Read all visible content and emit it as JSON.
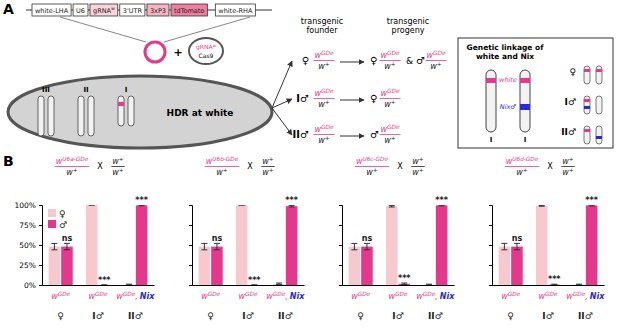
{
  "panel_labels": [
    "A",
    "B"
  ],
  "diagram": {
    "construct": [
      {
        "text": "white-LHA"
      },
      {
        "text": "U6"
      },
      {
        "text": "gRNA",
        "sup": "w"
      },
      {
        "text": "3'UTR"
      },
      {
        "text": "3xP3"
      },
      {
        "text": "tdTomato"
      },
      {
        "text": "white-RHA"
      }
    ],
    "plasmid": {
      "text": "gRNA",
      "sup": "w",
      "protein": "Cas9"
    },
    "plus": "+",
    "chromosomes": [
      "III",
      "II",
      "I"
    ],
    "event": "HDR at white",
    "headers": [
      [
        "transgenic",
        "founder"
      ],
      [
        "transgenic",
        "progeny"
      ]
    ],
    "rows": [
      {
        "founder": "♀",
        "progeny": [
          "♀",
          "♂"
        ]
      },
      {
        "founder": "I♂",
        "progeny": [
          "♀"
        ]
      },
      {
        "founder": "II♂",
        "progeny": [
          "♂"
        ]
      }
    ],
    "genotype": {
      "numerator": {
        "text": "w",
        "sup": "GDe"
      },
      "denominator": {
        "text": "w",
        "sup": "+"
      }
    },
    "conjunction": "&",
    "linkage": {
      "title": [
        "Genetic linkage of",
        "white and Nix"
      ],
      "gene": "white",
      "linked": "Nix",
      "linked_sex": "♂",
      "chromosome": "I",
      "types": [
        "♀",
        "I♂",
        "II♂"
      ]
    }
  },
  "chart_data": [
    {
      "type": "bar",
      "cross": {
        "parent1": {
          "numerator": {
            "text": "w",
            "sup": "U6a-GDe"
          },
          "denominator": {
            "text": "w",
            "sup": "+"
          }
        },
        "symbol": "X",
        "parent2": {
          "numerator": {
            "text": "w",
            "sup": "+"
          },
          "denominator": {
            "text": "w",
            "sup": "+"
          }
        }
      },
      "categories": [
        "♀",
        "I♂",
        "II♂"
      ],
      "genotypes": [
        {
          "text": "w",
          "sup": "GDe"
        },
        {
          "text": "w",
          "sup": "GDe"
        },
        {
          "text": "w",
          "sup": "GDe",
          "separator": ",",
          "linked": "Nix"
        }
      ],
      "series": [
        {
          "name": "♀",
          "color": "#f7c9cf",
          "values": [
            48,
            100,
            0.5
          ],
          "errors": [
            4,
            0,
            0.5
          ]
        },
        {
          "name": "♂",
          "color": "#e4388c",
          "values": [
            48,
            0,
            99.5
          ],
          "errors": [
            4,
            0,
            0.5
          ]
        }
      ],
      "significance": [
        "ns",
        "***",
        "***"
      ],
      "ylim": [
        0,
        100
      ],
      "yticks": [
        {
          "value": 0,
          "label": "0%"
        },
        {
          "value": 25,
          "label": "25%"
        },
        {
          "value": 50,
          "label": "50%"
        },
        {
          "value": 75,
          "label": "75%"
        },
        {
          "value": 100,
          "label": "100%"
        }
      ],
      "legend": "upper left"
    },
    {
      "type": "bar",
      "cross": {
        "parent1": {
          "numerator": {
            "text": "w",
            "sup": "U6b-GDe"
          },
          "denominator": {
            "text": "w",
            "sup": "+"
          }
        },
        "symbol": "X",
        "parent2": {
          "numerator": {
            "text": "w",
            "sup": "+"
          },
          "denominator": {
            "text": "w",
            "sup": "+"
          }
        }
      },
      "categories": [
        "♀",
        "I♂",
        "II♂"
      ],
      "genotypes": [
        {
          "text": "w",
          "sup": "GDe"
        },
        {
          "text": "w",
          "sup": "GDe"
        },
        {
          "text": "w",
          "sup": "GDe",
          "separator": ",",
          "linked": "Nix"
        }
      ],
      "series": [
        {
          "name": "♀",
          "color": "#f7c9cf",
          "values": [
            48,
            100,
            1.5
          ],
          "errors": [
            4,
            0,
            1
          ]
        },
        {
          "name": "♂",
          "color": "#e4388c",
          "values": [
            48,
            0,
            98.5
          ],
          "errors": [
            4,
            0,
            1
          ]
        }
      ],
      "significance": [
        "ns",
        "***",
        "***"
      ],
      "ylim": [
        0,
        100
      ],
      "yticks": [
        0,
        25,
        50,
        75,
        100
      ],
      "tick_labels": "x"
    },
    {
      "type": "bar",
      "cross": {
        "parent1": {
          "numerator": {
            "text": "w",
            "sup": "U6c-GDe"
          },
          "denominator": {
            "text": "w",
            "sup": "+"
          }
        },
        "symbol": "X",
        "parent2": {
          "numerator": {
            "text": "w",
            "sup": "+"
          },
          "denominator": {
            "text": "w",
            "sup": "+"
          }
        }
      },
      "categories": [
        "♀",
        "I♂",
        "II♂"
      ],
      "genotypes": [
        {
          "text": "w",
          "sup": "GDe"
        },
        {
          "text": "w",
          "sup": "GDe"
        },
        {
          "text": "w",
          "sup": "GDe",
          "separator": ",",
          "linked": "Nix"
        }
      ],
      "series": [
        {
          "name": "♀",
          "color": "#f7c9cf",
          "values": [
            48,
            98.5,
            0.5
          ],
          "errors": [
            4,
            1,
            0.5
          ]
        },
        {
          "name": "♂",
          "color": "#e4388c",
          "values": [
            48,
            1.5,
            99.5
          ],
          "errors": [
            4,
            1,
            0.5
          ]
        }
      ],
      "significance": [
        "ns",
        "***",
        "***"
      ],
      "ylim": [
        0,
        100
      ],
      "yticks": [
        0,
        25,
        50,
        75,
        100
      ],
      "tick_labels": "x"
    },
    {
      "type": "bar",
      "cross": {
        "parent1": {
          "numerator": {
            "text": "w",
            "sup": "U6d-GDe"
          },
          "denominator": {
            "text": "w",
            "sup": "+"
          }
        },
        "symbol": "X",
        "parent2": {
          "numerator": {
            "text": "w",
            "sup": "+"
          },
          "denominator": {
            "text": "w",
            "sup": "+"
          }
        }
      },
      "categories": [
        "♀",
        "I♂",
        "II♂"
      ],
      "genotypes": [
        {
          "text": "w",
          "sup": "GDe"
        },
        {
          "text": "w",
          "sup": "GDe"
        },
        {
          "text": "w",
          "sup": "GDe",
          "separator": ",",
          "linked": "Nix"
        }
      ],
      "series": [
        {
          "name": "♀",
          "color": "#f7c9cf",
          "values": [
            48,
            99,
            0.5
          ],
          "errors": [
            4,
            0.5,
            0.5
          ]
        },
        {
          "name": "♂",
          "color": "#e4388c",
          "values": [
            48,
            0.5,
            99.5
          ],
          "errors": [
            4,
            0.5,
            0.5
          ]
        }
      ],
      "significance": [
        "ns",
        "***",
        "***"
      ],
      "ylim": [
        0,
        100
      ],
      "yticks": [
        0,
        25,
        50,
        75,
        100
      ],
      "tick_labels": "x"
    }
  ]
}
